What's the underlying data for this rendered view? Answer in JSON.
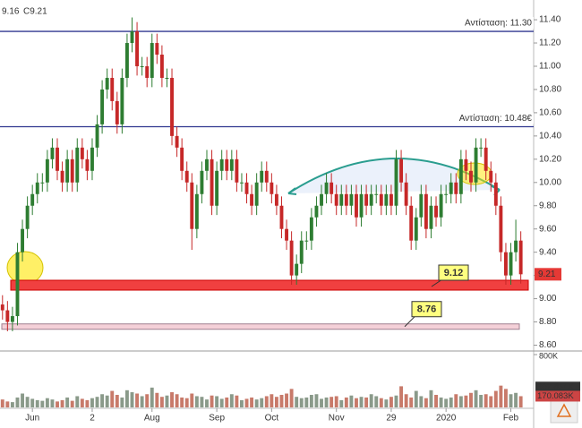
{
  "chart_data": {
    "type": "candlestick",
    "header": [
      "9.16",
      "C9.21"
    ],
    "open": [
      8.95,
      8.9,
      8.8,
      8.85,
      9.4,
      9.6,
      9.8,
      9.9,
      10.0,
      10.0,
      10.2,
      10.3,
      10.1,
      10.0,
      10.2,
      10.0,
      10.3,
      10.2,
      10.1,
      10.3,
      10.5,
      10.8,
      10.9,
      10.7,
      10.5,
      10.9,
      11.2,
      11.3,
      11.0,
      11.0,
      10.9,
      11.2,
      11.1,
      10.9,
      10.9,
      10.4,
      10.3,
      10.1,
      10.0,
      9.6,
      9.9,
      10.1,
      10.2,
      9.8,
      10.1,
      10.2,
      10.1,
      10.2,
      10.0,
      10.0,
      9.9,
      9.8,
      10.0,
      10.1,
      10.0,
      9.9,
      9.8,
      9.6,
      9.5,
      9.2,
      9.3,
      9.5,
      9.5,
      9.7,
      9.8,
      9.9,
      10.0,
      9.9,
      9.8,
      9.9,
      9.8,
      9.9,
      9.7,
      9.9,
      9.8,
      9.9,
      9.9,
      9.8,
      9.9,
      9.8,
      10.2,
      10.0,
      9.8,
      9.5,
      9.7,
      9.9,
      9.6,
      9.8,
      9.7,
      9.9,
      9.9,
      10.0,
      9.9,
      10.2,
      10.1,
      10.0,
      10.3,
      10.3,
      10.1,
      10.0,
      9.8,
      9.4,
      9.2,
      9.4,
      9.5
    ],
    "high": [
      9.03,
      8.98,
      8.93,
      9.48,
      9.68,
      9.88,
      9.98,
      10.08,
      10.08,
      10.28,
      10.38,
      10.38,
      10.18,
      10.28,
      10.28,
      10.38,
      10.38,
      10.28,
      10.38,
      10.58,
      10.88,
      10.98,
      10.98,
      10.78,
      10.98,
      11.28,
      11.42,
      11.38,
      11.08,
      11.08,
      11.28,
      11.28,
      11.18,
      10.98,
      10.98,
      10.48,
      10.38,
      10.18,
      10.08,
      9.98,
      10.18,
      10.28,
      10.28,
      10.18,
      10.28,
      10.28,
      10.28,
      10.28,
      10.08,
      10.08,
      9.98,
      10.08,
      10.18,
      10.18,
      10.08,
      9.98,
      9.88,
      9.68,
      9.58,
      9.38,
      9.58,
      9.58,
      9.78,
      9.88,
      9.98,
      10.08,
      10.08,
      9.98,
      9.98,
      9.98,
      9.98,
      9.98,
      9.98,
      9.98,
      9.98,
      9.98,
      9.98,
      9.98,
      9.98,
      10.28,
      10.28,
      10.08,
      9.88,
      9.78,
      9.98,
      9.98,
      9.88,
      9.88,
      9.98,
      9.98,
      10.08,
      10.08,
      10.28,
      10.28,
      10.18,
      10.38,
      10.38,
      10.38,
      10.18,
      10.08,
      9.88,
      9.48,
      9.48,
      9.68,
      9.58
    ],
    "low": [
      8.82,
      8.72,
      8.72,
      8.77,
      9.32,
      9.52,
      9.72,
      9.82,
      9.92,
      9.92,
      10.12,
      10.02,
      9.92,
      9.92,
      9.92,
      9.92,
      10.12,
      10.02,
      10.02,
      10.22,
      10.42,
      10.72,
      10.62,
      10.42,
      10.42,
      10.82,
      11.12,
      10.92,
      10.92,
      10.82,
      10.82,
      11.02,
      10.82,
      10.82,
      10.32,
      10.22,
      10.02,
      9.92,
      9.42,
      9.52,
      9.82,
      10.02,
      9.72,
      9.72,
      10.02,
      10.02,
      10.02,
      9.92,
      9.92,
      9.82,
      9.72,
      9.72,
      9.92,
      9.92,
      9.82,
      9.72,
      9.52,
      9.42,
      9.12,
      9.12,
      9.22,
      9.42,
      9.42,
      9.62,
      9.72,
      9.82,
      9.82,
      9.72,
      9.72,
      9.72,
      9.72,
      9.62,
      9.62,
      9.72,
      9.72,
      9.82,
      9.72,
      9.72,
      9.72,
      9.72,
      9.92,
      9.72,
      9.42,
      9.42,
      9.62,
      9.52,
      9.52,
      9.62,
      9.62,
      9.82,
      9.82,
      9.82,
      9.82,
      10.02,
      9.92,
      9.92,
      10.22,
      10.02,
      9.92,
      9.72,
      9.32,
      9.12,
      9.12,
      9.32,
      9.13
    ],
    "close": [
      8.9,
      8.8,
      8.85,
      9.4,
      9.6,
      9.8,
      9.9,
      10.0,
      10.0,
      10.2,
      10.3,
      10.1,
      10.0,
      10.2,
      10.0,
      10.3,
      10.2,
      10.1,
      10.3,
      10.5,
      10.8,
      10.9,
      10.7,
      10.5,
      10.9,
      11.2,
      11.3,
      11.0,
      11.0,
      10.9,
      11.2,
      11.1,
      10.9,
      10.9,
      10.4,
      10.3,
      10.1,
      10.0,
      9.6,
      9.9,
      10.1,
      10.2,
      9.8,
      10.1,
      10.2,
      10.1,
      10.2,
      10.0,
      10.0,
      9.9,
      9.8,
      10.0,
      10.1,
      10.0,
      9.9,
      9.8,
      9.6,
      9.5,
      9.2,
      9.3,
      9.5,
      9.5,
      9.7,
      9.8,
      9.9,
      10.0,
      9.9,
      9.8,
      9.9,
      9.8,
      9.9,
      9.7,
      9.9,
      9.8,
      9.9,
      9.9,
      9.8,
      9.9,
      9.8,
      10.2,
      10.0,
      9.8,
      9.5,
      9.7,
      9.9,
      9.6,
      9.8,
      9.7,
      9.9,
      9.9,
      10.0,
      9.9,
      10.2,
      10.1,
      10.0,
      10.3,
      10.3,
      10.1,
      10.0,
      9.8,
      9.4,
      9.2,
      9.4,
      9.5,
      9.21
    ],
    "volume": [
      120,
      90,
      80,
      150,
      210,
      160,
      130,
      110,
      100,
      140,
      120,
      90,
      110,
      150,
      100,
      170,
      130,
      110,
      140,
      160,
      200,
      180,
      250,
      190,
      150,
      260,
      230,
      210,
      170,
      200,
      300,
      220,
      160,
      180,
      230,
      200,
      150,
      140,
      210,
      170,
      160,
      120,
      180,
      170,
      130,
      150,
      200,
      180,
      110,
      130,
      150,
      120,
      140,
      170,
      200,
      160,
      190,
      210,
      280,
      160,
      140,
      150,
      190,
      200,
      130,
      150,
      160,
      170,
      110,
      150,
      180,
      140,
      160,
      150,
      200,
      170,
      140,
      120,
      160,
      180,
      320,
      200,
      150,
      250,
      170,
      140,
      260,
      190,
      150,
      130,
      150,
      200,
      170,
      180,
      220,
      260,
      190,
      200,
      170,
      250,
      330,
      280,
      200,
      220,
      170
    ],
    "up_color": "#2e7d32",
    "down_color": "#c62828",
    "xlim": [
      -0.5,
      105.5
    ],
    "xticks": [
      {
        "value": 6,
        "label": "Jun"
      },
      {
        "value": 18,
        "label": "2"
      },
      {
        "value": 30,
        "label": "Aug"
      },
      {
        "value": 43,
        "label": "Sep"
      },
      {
        "value": 54,
        "label": "Oct"
      },
      {
        "value": 67,
        "label": "Nov"
      },
      {
        "value": 78,
        "label": "29"
      },
      {
        "value": 89,
        "label": "2020"
      },
      {
        "value": 102,
        "label": "Feb"
      }
    ],
    "ylim": [
      8.55,
      11.57
    ],
    "yticks": [
      {
        "value": 8.6,
        "label": "8.60"
      },
      {
        "value": 8.8,
        "label": "8.80"
      },
      {
        "value": 9.0,
        "label": "9.00"
      },
      {
        "value": 9.2,
        "label": "9.20"
      },
      {
        "value": 9.4,
        "label": "9.40"
      },
      {
        "value": 9.6,
        "label": "9.60"
      },
      {
        "value": 9.8,
        "label": "9.80"
      },
      {
        "value": 10.0,
        "label": "10.00"
      },
      {
        "value": 10.2,
        "label": "10.20"
      },
      {
        "value": 10.4,
        "label": "10.40"
      },
      {
        "value": 10.6,
        "label": "10.60"
      },
      {
        "value": 10.8,
        "label": "10.80"
      },
      {
        "value": 11.0,
        "label": "11.00"
      },
      {
        "value": 11.2,
        "label": "11.20"
      },
      {
        "value": 11.4,
        "label": "11.40"
      }
    ],
    "resistance_lines": [
      {
        "value": 11.3,
        "label": "Αντίσταση: 11.30"
      },
      {
        "value": 10.48,
        "label": "Αντίσταση: 10.48€"
      }
    ],
    "support_zones": [
      {
        "value": 9.12,
        "label": "9.12"
      },
      {
        "value": 8.76,
        "label": "8.76"
      }
    ],
    "last_price": {
      "value": 9.21,
      "label": "9.21"
    },
    "volume_ylim": [
      0,
      800
    ],
    "volume_yticks": [
      {
        "value": 800,
        "label": "800K"
      }
    ],
    "volume_labels": [
      {
        "value": 307.854,
        "label": "307.854K"
      },
      {
        "value": 170.083,
        "label": "170.083K"
      }
    ]
  }
}
